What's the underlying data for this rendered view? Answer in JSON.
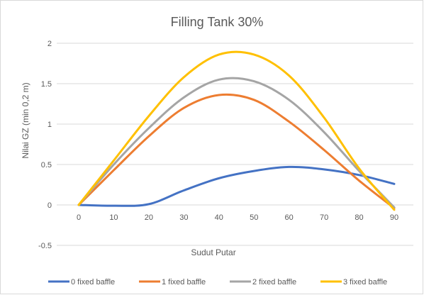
{
  "chart_data": {
    "type": "line",
    "title": "Filling Tank 30%",
    "xlabel": "Sudut Putar",
    "ylabel": "Nilai GZ (min 0,2 m)",
    "xlim": [
      0,
      90
    ],
    "ylim": [
      -0.5,
      2
    ],
    "x_ticks": [
      0,
      10,
      20,
      30,
      40,
      50,
      60,
      70,
      80,
      90
    ],
    "y_ticks": [
      2,
      1.5,
      1,
      0.5,
      0,
      -0.5
    ],
    "grid": true,
    "legend_position": "bottom",
    "x": [
      0,
      10,
      20,
      30,
      40,
      50,
      60,
      70,
      80,
      90
    ],
    "series": [
      {
        "name": "0 fixed baffle",
        "color": "#4472C4",
        "values": [
          0,
          -0.01,
          0.01,
          0.18,
          0.33,
          0.42,
          0.47,
          0.44,
          0.37,
          0.26
        ]
      },
      {
        "name": "1 fixed baffle",
        "color": "#ED7D31",
        "values": [
          0,
          0.43,
          0.85,
          1.2,
          1.36,
          1.3,
          1.03,
          0.68,
          0.3,
          -0.04
        ]
      },
      {
        "name": "2 fixed baffle",
        "color": "#A5A5A5",
        "values": [
          0,
          0.5,
          0.95,
          1.33,
          1.55,
          1.53,
          1.3,
          0.9,
          0.42,
          -0.03
        ]
      },
      {
        "name": "3 fixed baffle",
        "color": "#FFC000",
        "values": [
          0,
          0.55,
          1.1,
          1.58,
          1.86,
          1.86,
          1.6,
          1.08,
          0.45,
          -0.06
        ]
      }
    ]
  }
}
